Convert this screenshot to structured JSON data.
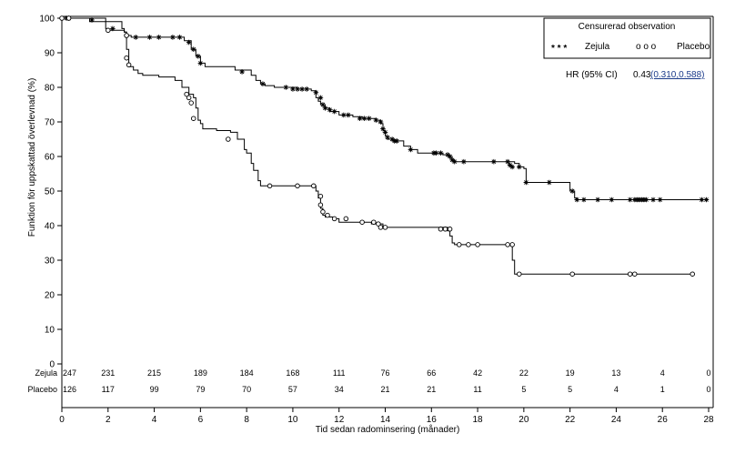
{
  "chart_data": {
    "type": "line",
    "xlabel": "Tid sedan radominsering (månader)",
    "ylabel": "Funktion för uppskattad överlevnad (%)",
    "xlim": [
      0,
      28
    ],
    "ylim": [
      0,
      100
    ],
    "xticks": [
      "0",
      "2",
      "4",
      "6",
      "8",
      "10",
      "12",
      "14",
      "16",
      "18",
      "20",
      "22",
      "24",
      "26",
      "28"
    ],
    "yticks": [
      "0",
      "10",
      "20",
      "30",
      "40",
      "50",
      "60",
      "70",
      "80",
      "90",
      "100"
    ],
    "legend": {
      "title": "Censurerad observation",
      "zejula_marks": "* * *",
      "placebo_marks": "o o o"
    },
    "hr": {
      "label": "HR (95% CI)",
      "value": "0.43",
      "ci": "(0.310,0.588)"
    },
    "series": [
      {
        "name": "Zejula",
        "marker": "star",
        "steps": [
          [
            0,
            100
          ],
          [
            1.9,
            99
          ],
          [
            2.6,
            97
          ],
          [
            2.7,
            96
          ],
          [
            2.8,
            95
          ],
          [
            3.0,
            94.5
          ],
          [
            5.3,
            93.5
          ],
          [
            5.6,
            91
          ],
          [
            5.8,
            89
          ],
          [
            6.0,
            87
          ],
          [
            6.2,
            86
          ],
          [
            7.5,
            85
          ],
          [
            8.2,
            83.5
          ],
          [
            8.4,
            82
          ],
          [
            8.6,
            81
          ],
          [
            8.8,
            80.5
          ],
          [
            9.2,
            80
          ],
          [
            10.2,
            79.5
          ],
          [
            10.8,
            79
          ],
          [
            11.0,
            77
          ],
          [
            11.1,
            76
          ],
          [
            11.2,
            75
          ],
          [
            11.4,
            74
          ],
          [
            11.6,
            73
          ],
          [
            12.0,
            72
          ],
          [
            12.6,
            71.5
          ],
          [
            13.0,
            71
          ],
          [
            13.6,
            70.5
          ],
          [
            13.8,
            69.5
          ],
          [
            13.9,
            67.5
          ],
          [
            14.0,
            66
          ],
          [
            14.1,
            65
          ],
          [
            14.3,
            64.5
          ],
          [
            14.8,
            63
          ],
          [
            15.1,
            62
          ],
          [
            15.4,
            61
          ],
          [
            16.5,
            60.5
          ],
          [
            16.8,
            60
          ],
          [
            16.9,
            59
          ],
          [
            17.0,
            58.5
          ],
          [
            19.6,
            58
          ],
          [
            19.8,
            57
          ],
          [
            20.0,
            56.5
          ],
          [
            20.1,
            52.5
          ],
          [
            22.0,
            50
          ],
          [
            22.2,
            48
          ],
          [
            22.3,
            47.5
          ],
          [
            27.9,
            47.5
          ]
        ],
        "censors": [
          [
            0.2,
            100
          ],
          [
            0.3,
            100
          ],
          [
            1.3,
            99.5
          ],
          [
            2.2,
            97
          ],
          [
            2.8,
            95
          ],
          [
            3.2,
            94.5
          ],
          [
            3.8,
            94.5
          ],
          [
            4.2,
            94.5
          ],
          [
            4.8,
            94.5
          ],
          [
            5.1,
            94.5
          ],
          [
            5.5,
            93
          ],
          [
            5.7,
            91
          ],
          [
            5.9,
            89
          ],
          [
            6.0,
            87
          ],
          [
            7.8,
            84.5
          ],
          [
            8.7,
            81
          ],
          [
            9.7,
            80
          ],
          [
            10.0,
            79.5
          ],
          [
            10.2,
            79.5
          ],
          [
            10.4,
            79.5
          ],
          [
            10.6,
            79.5
          ],
          [
            11.0,
            78.5
          ],
          [
            11.2,
            77
          ],
          [
            11.3,
            75
          ],
          [
            11.4,
            74
          ],
          [
            11.6,
            73.5
          ],
          [
            11.8,
            73
          ],
          [
            12.2,
            72
          ],
          [
            12.4,
            72
          ],
          [
            12.9,
            71
          ],
          [
            13.1,
            71
          ],
          [
            13.3,
            71
          ],
          [
            13.6,
            70.5
          ],
          [
            13.8,
            70
          ],
          [
            13.9,
            68
          ],
          [
            14.0,
            67
          ],
          [
            14.1,
            65.5
          ],
          [
            14.3,
            65
          ],
          [
            14.4,
            64.5
          ],
          [
            14.5,
            64.5
          ],
          [
            15.1,
            62
          ],
          [
            16.1,
            61
          ],
          [
            16.2,
            61
          ],
          [
            16.4,
            61
          ],
          [
            16.7,
            60.5
          ],
          [
            16.8,
            60
          ],
          [
            16.9,
            59
          ],
          [
            17.0,
            58.5
          ],
          [
            17.4,
            58.5
          ],
          [
            18.7,
            58.5
          ],
          [
            19.3,
            58.5
          ],
          [
            19.4,
            57.5
          ],
          [
            19.5,
            57
          ],
          [
            19.8,
            57
          ],
          [
            20.1,
            52.5
          ],
          [
            21.1,
            52.5
          ],
          [
            22.1,
            50
          ],
          [
            22.3,
            47.5
          ],
          [
            22.6,
            47.5
          ],
          [
            23.2,
            47.5
          ],
          [
            23.8,
            47.5
          ],
          [
            24.6,
            47.5
          ],
          [
            24.8,
            47.5
          ],
          [
            24.9,
            47.5
          ],
          [
            25.0,
            47.5
          ],
          [
            25.1,
            47.5
          ],
          [
            25.2,
            47.5
          ],
          [
            25.3,
            47.5
          ],
          [
            25.6,
            47.5
          ],
          [
            25.9,
            47.5
          ],
          [
            27.7,
            47.5
          ],
          [
            27.9,
            47.5
          ]
        ]
      },
      {
        "name": "Placebo",
        "marker": "circle",
        "steps": [
          [
            0,
            100
          ],
          [
            1.2,
            99
          ],
          [
            1.9,
            97
          ],
          [
            2.0,
            96.5
          ],
          [
            2.7,
            96
          ],
          [
            2.8,
            91
          ],
          [
            2.9,
            86
          ],
          [
            3.1,
            85
          ],
          [
            3.3,
            84
          ],
          [
            3.5,
            83.5
          ],
          [
            4.2,
            83
          ],
          [
            4.9,
            82
          ],
          [
            5.2,
            80
          ],
          [
            5.5,
            78
          ],
          [
            5.7,
            77
          ],
          [
            5.8,
            74
          ],
          [
            5.9,
            70.5
          ],
          [
            6.0,
            69.5
          ],
          [
            6.1,
            68
          ],
          [
            6.7,
            67.5
          ],
          [
            7.3,
            67
          ],
          [
            7.6,
            65
          ],
          [
            7.9,
            62
          ],
          [
            8.0,
            61
          ],
          [
            8.2,
            58
          ],
          [
            8.3,
            56
          ],
          [
            8.5,
            53
          ],
          [
            8.6,
            51.5
          ],
          [
            11.0,
            50
          ],
          [
            11.1,
            48
          ],
          [
            11.2,
            45
          ],
          [
            11.3,
            43
          ],
          [
            11.4,
            42.5
          ],
          [
            11.8,
            42
          ],
          [
            12.0,
            41
          ],
          [
            13.4,
            40.5
          ],
          [
            13.9,
            39.5
          ],
          [
            16.7,
            38.5
          ],
          [
            16.8,
            37
          ],
          [
            16.9,
            35
          ],
          [
            17.0,
            34.5
          ],
          [
            19.4,
            34.5
          ],
          [
            19.5,
            30
          ],
          [
            19.6,
            26
          ],
          [
            27.3,
            26
          ]
        ],
        "censors": [
          [
            0,
            100
          ],
          [
            0.3,
            100
          ],
          [
            2.0,
            96.5
          ],
          [
            2.8,
            95
          ],
          [
            2.8,
            88.5
          ],
          [
            2.9,
            86.5
          ],
          [
            5.4,
            78
          ],
          [
            5.5,
            77
          ],
          [
            5.6,
            75.5
          ],
          [
            5.7,
            71
          ],
          [
            7.2,
            65
          ],
          [
            9.0,
            51.5
          ],
          [
            10.2,
            51.5
          ],
          [
            10.9,
            51.5
          ],
          [
            11.2,
            48.5
          ],
          [
            11.2,
            46
          ],
          [
            11.3,
            44
          ],
          [
            11.5,
            43
          ],
          [
            11.8,
            42
          ],
          [
            12.3,
            42
          ],
          [
            13.0,
            41
          ],
          [
            13.5,
            41
          ],
          [
            13.7,
            40.5
          ],
          [
            13.8,
            39.5
          ],
          [
            14.0,
            39.5
          ],
          [
            16.4,
            39
          ],
          [
            16.6,
            39
          ],
          [
            16.8,
            39
          ],
          [
            17.2,
            34.5
          ],
          [
            17.6,
            34.5
          ],
          [
            18.0,
            34.5
          ],
          [
            19.3,
            34.5
          ],
          [
            19.5,
            34.5
          ],
          [
            19.8,
            26
          ],
          [
            22.1,
            26
          ],
          [
            24.6,
            26
          ],
          [
            24.8,
            26
          ],
          [
            27.3,
            26
          ]
        ]
      }
    ],
    "risk_table": {
      "times": [
        "0",
        "2",
        "4",
        "6",
        "8",
        "10",
        "12",
        "14",
        "16",
        "18",
        "20",
        "22",
        "24",
        "26",
        "28"
      ],
      "rows": [
        {
          "label": "Zejula",
          "values": [
            "247",
            "231",
            "215",
            "189",
            "184",
            "168",
            "111",
            "76",
            "66",
            "42",
            "22",
            "19",
            "13",
            "4",
            "0"
          ]
        },
        {
          "label": "Placebo",
          "values": [
            "126",
            "117",
            "99",
            "79",
            "70",
            "57",
            "34",
            "21",
            "21",
            "11",
            "5",
            "5",
            "4",
            "1",
            "0"
          ]
        }
      ]
    }
  }
}
